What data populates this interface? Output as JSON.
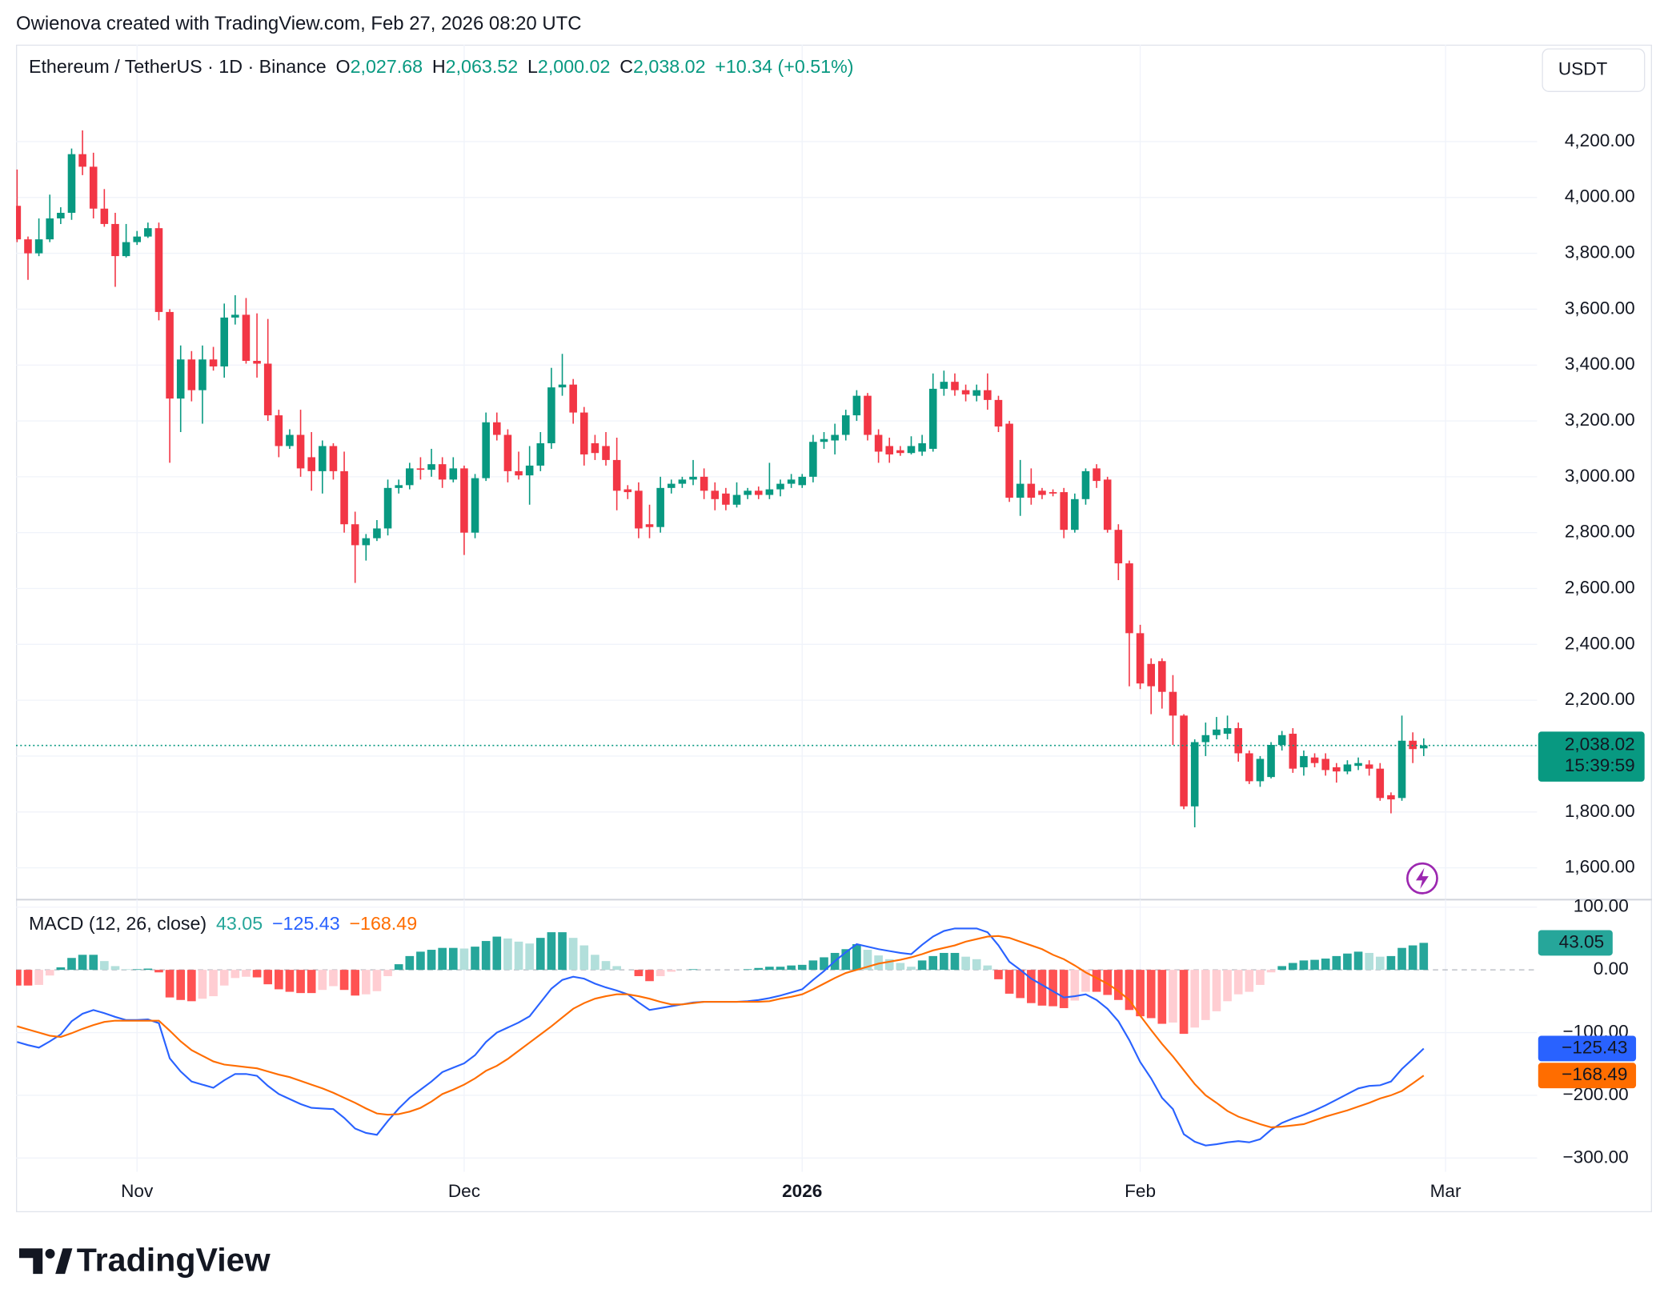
{
  "header": {
    "credit": "Owienova created with TradingView.com, Feb 27, 2026 08:20 UTC"
  },
  "chart_data": [
    {
      "type": "candlestick",
      "title": "Ethereum / TetherUS · 1D · Binance",
      "currency": "USDT",
      "legend": [
        {
          "label": "O",
          "value": "2,027.68"
        },
        {
          "label": "H",
          "value": "2,063.52"
        },
        {
          "label": "L",
          "value": "2,000.02"
        },
        {
          "label": "C",
          "value": "2,038.02"
        }
      ],
      "change": "+10.34 (+0.51%)",
      "open": [
        3970,
        3850,
        3800,
        3850,
        3925,
        3945,
        4155,
        4110,
        3960,
        3905,
        3790,
        3840,
        3860,
        3890,
        3590,
        3280,
        3420,
        3310,
        3420,
        3395,
        3570,
        3580,
        3415,
        3405,
        3220,
        3110,
        3150,
        3070,
        3020,
        3110,
        3020,
        2830,
        2755,
        2780,
        2815,
        2960,
        2970,
        3030,
        3025,
        3045,
        2990,
        3030,
        2800,
        2995,
        3195,
        3150,
        3020,
        3005,
        3040,
        3120,
        3320,
        3330,
        3230,
        3120,
        3110,
        3060,
        2955,
        2950,
        2830,
        2820,
        2960,
        2975,
        2990,
        3000,
        2950,
        2940,
        2900,
        2935,
        2950,
        2935,
        2955,
        2975,
        2970,
        3000,
        3125,
        3130,
        3150,
        3220,
        3290,
        3150,
        3110,
        3095,
        3085,
        3090,
        3100,
        3315,
        3340,
        3310,
        3290,
        3310,
        3275,
        3190,
        2925,
        2975,
        2950,
        2945,
        2945,
        2810,
        2920,
        3030,
        2990,
        2810,
        2690,
        2440,
        2330,
        2340,
        2230,
        2145,
        1820,
        2050,
        2075,
        2080,
        2100,
        2010,
        1910,
        1925,
        2040,
        2080,
        1960,
        1995,
        1990,
        1960,
        1945,
        1965,
        1970,
        1955,
        1860,
        1850,
        2055,
        2027.68
      ],
      "high": [
        4100,
        3860,
        3925,
        4010,
        3965,
        4175,
        4240,
        4160,
        4030,
        3945,
        3905,
        3880,
        3910,
        3910,
        3600,
        3470,
        3450,
        3470,
        3465,
        3620,
        3650,
        3640,
        3585,
        3565,
        3240,
        3170,
        3240,
        3160,
        3130,
        3120,
        3090,
        2875,
        2795,
        2845,
        2990,
        2990,
        3050,
        3070,
        3100,
        3070,
        3070,
        3040,
        3010,
        3230,
        3230,
        3170,
        3090,
        3110,
        3160,
        3390,
        3440,
        3350,
        3250,
        3150,
        3160,
        3140,
        2970,
        2980,
        2900,
        3000,
        2990,
        3000,
        3060,
        3030,
        2980,
        2960,
        2980,
        2960,
        2965,
        3050,
        2990,
        3010,
        3010,
        3150,
        3160,
        3190,
        3240,
        3310,
        3300,
        3170,
        3140,
        3110,
        3145,
        3150,
        3370,
        3380,
        3370,
        3330,
        3330,
        3370,
        3290,
        3200,
        3060,
        3030,
        2960,
        2955,
        2960,
        2940,
        3030,
        3045,
        3000,
        2830,
        2700,
        2470,
        2350,
        2350,
        2290,
        2150,
        2060,
        2120,
        2140,
        2145,
        2120,
        2020,
        2000,
        2050,
        2090,
        2100,
        2020,
        2010,
        2010,
        1975,
        1985,
        1995,
        1985,
        1975,
        1870,
        2145,
        2085,
        2063.52
      ],
      "low": [
        3840,
        3705,
        3790,
        3840,
        3905,
        3920,
        4080,
        3925,
        3895,
        3680,
        3785,
        3830,
        3855,
        3560,
        3050,
        3160,
        3270,
        3190,
        3380,
        3355,
        3545,
        3405,
        3355,
        3200,
        3070,
        3100,
        3000,
        2950,
        2940,
        2990,
        2800,
        2620,
        2700,
        2770,
        2790,
        2940,
        2955,
        2990,
        3000,
        2960,
        2980,
        2720,
        2780,
        2985,
        3130,
        2980,
        2990,
        2900,
        3020,
        3100,
        3290,
        3190,
        3040,
        3060,
        3040,
        2880,
        2920,
        2780,
        2780,
        2800,
        2940,
        2960,
        2970,
        2920,
        2880,
        2880,
        2890,
        2920,
        2920,
        2920,
        2930,
        2960,
        2960,
        2980,
        3100,
        3080,
        3130,
        3200,
        3130,
        3050,
        3050,
        3075,
        3080,
        3075,
        3090,
        3290,
        3290,
        3270,
        3270,
        3240,
        3160,
        2910,
        2860,
        2900,
        2920,
        2930,
        2780,
        2800,
        2900,
        2960,
        2800,
        2630,
        2250,
        2240,
        2150,
        2170,
        2040,
        1810,
        1745,
        2000,
        2060,
        2060,
        1980,
        1900,
        1890,
        1920,
        2020,
        1940,
        1930,
        1960,
        1930,
        1905,
        1935,
        1950,
        1930,
        1840,
        1795,
        1840,
        1975,
        2000.02
      ],
      "close": [
        3850,
        3800,
        3850,
        3925,
        3945,
        4155,
        4110,
        3960,
        3905,
        3790,
        3840,
        3860,
        3890,
        3590,
        3280,
        3420,
        3310,
        3420,
        3395,
        3570,
        3580,
        3415,
        3405,
        3220,
        3110,
        3150,
        3030,
        3020,
        3110,
        3020,
        2830,
        2755,
        2780,
        2815,
        2960,
        2970,
        3030,
        3025,
        3045,
        2990,
        3030,
        2800,
        2995,
        3195,
        3150,
        3020,
        3005,
        3040,
        3120,
        3320,
        3330,
        3230,
        3080,
        3085,
        3060,
        2950,
        2945,
        2815,
        2820,
        2960,
        2975,
        2990,
        3000,
        2950,
        2920,
        2900,
        2935,
        2950,
        2935,
        2955,
        2975,
        2990,
        3000,
        3125,
        3135,
        3150,
        3220,
        3290,
        3150,
        3090,
        3080,
        3085,
        3110,
        3120,
        3315,
        3340,
        3310,
        3295,
        3310,
        3275,
        3180,
        2925,
        2975,
        2925,
        2935,
        2940,
        2810,
        2920,
        3020,
        2985,
        2810,
        2690,
        2440,
        2260,
        2250,
        2230,
        2145,
        1820,
        2050,
        2075,
        2095,
        2100,
        2010,
        1910,
        1990,
        2040,
        2075,
        1955,
        2000,
        1975,
        1950,
        1945,
        1970,
        1975,
        1955,
        1850,
        1845,
        2055,
        2025,
        2038.02
      ],
      "last_price_label": "2,038.02",
      "countdown": "15:39:59",
      "up_color": "#089981",
      "down_color": "#f23645",
      "xlim": [
        -0.1,
        139.4
      ],
      "ylim": [
        1490,
        4547
      ],
      "yticks": [
        {
          "value": 1600,
          "label": "1,600.00"
        },
        {
          "value": 1800,
          "label": "1,800.00"
        },
        {
          "value": 2000,
          "label": "2,000.00"
        },
        {
          "value": 2200,
          "label": "2,200.00"
        },
        {
          "value": 2400,
          "label": "2,400.00"
        },
        {
          "value": 2600,
          "label": "2,600.00"
        },
        {
          "value": 2800,
          "label": "2,800.00"
        },
        {
          "value": 3000,
          "label": "3,000.00"
        },
        {
          "value": 3200,
          "label": "3,200.00"
        },
        {
          "value": 3400,
          "label": "3,400.00"
        },
        {
          "value": 3600,
          "label": "3,600.00"
        },
        {
          "value": 3800,
          "label": "3,800.00"
        },
        {
          "value": 4000,
          "label": "4,000.00"
        },
        {
          "value": 4200,
          "label": "4,200.00"
        }
      ],
      "grid": true
    },
    {
      "type": "macd",
      "title": "MACD (12, 26, close)",
      "histogram": {
        "values": [
          -25,
          -25,
          -24,
          -9,
          4,
          19,
          24,
          24,
          14,
          6,
          1,
          1,
          2,
          -4,
          -44,
          -48,
          -50,
          -46,
          -42,
          -25,
          -13,
          -11,
          -12,
          -23,
          -31,
          -35,
          -37,
          -37,
          -32,
          -26,
          -32,
          -41,
          -39,
          -34,
          -10,
          9,
          22,
          29,
          32,
          35,
          35,
          34,
          37,
          46,
          53,
          50,
          45,
          42,
          51,
          60,
          60,
          51,
          39,
          24,
          14,
          6,
          0,
          -10,
          -18,
          -10,
          -3,
          0,
          1,
          0,
          0,
          0,
          0,
          1,
          3,
          5,
          5,
          7,
          8,
          15,
          20,
          27,
          33,
          41,
          32,
          23,
          17,
          11,
          5,
          15,
          22,
          27,
          27,
          21,
          17,
          7,
          -15,
          -38,
          -45,
          -53,
          -57,
          -58,
          -61,
          -49,
          -35,
          -35,
          -40,
          -48,
          -64,
          -74,
          -77,
          -86,
          -84,
          -102,
          -92,
          -80,
          -66,
          -50,
          -39,
          -35,
          -24,
          -4,
          6,
          11,
          15,
          16,
          18,
          22,
          26,
          29,
          27,
          21,
          22,
          35,
          39,
          43.05
        ],
        "value_label": "43.05",
        "color": "#26a69a",
        "colors": {
          "up_strong": "#26a69a",
          "up_weak": "#b2dfdb",
          "down_strong": "#ff5252",
          "down_weak": "#ffcdd2"
        }
      },
      "macd": {
        "values": [
          -115,
          -120,
          -124,
          -114,
          -103,
          -82,
          -70,
          -64,
          -69,
          -75,
          -80,
          -80,
          -79,
          -85,
          -141,
          -162,
          -178,
          -183,
          -188,
          -176,
          -166,
          -166,
          -169,
          -185,
          -198,
          -206,
          -214,
          -220,
          -221,
          -222,
          -236,
          -253,
          -260,
          -263,
          -241,
          -221,
          -204,
          -191,
          -178,
          -163,
          -156,
          -149,
          -136,
          -115,
          -100,
          -92,
          -84,
          -74,
          -52,
          -30,
          -16,
          -11,
          -14,
          -22,
          -28,
          -33,
          -39,
          -52,
          -64,
          -61,
          -58,
          -55,
          -52,
          -51,
          -51,
          -51,
          -51,
          -50,
          -48,
          -45,
          -41,
          -36,
          -31,
          -16,
          -2,
          14,
          28,
          41,
          37,
          33,
          30,
          27,
          25,
          40,
          53,
          62,
          66,
          66,
          66,
          60,
          39,
          13,
          0,
          -14,
          -24,
          -34,
          -44,
          -42,
          -39,
          -48,
          -62,
          -82,
          -112,
          -147,
          -173,
          -204,
          -222,
          -262,
          -274,
          -280,
          -278,
          -275,
          -273,
          -275,
          -270,
          -255,
          -244,
          -237,
          -231,
          -224,
          -216,
          -207,
          -198,
          -189,
          -185,
          -184,
          -178,
          -158,
          -142,
          -125.43
        ],
        "value_label": "−125.43",
        "color": "#2962ff"
      },
      "signal": {
        "values": [
          -90,
          -95,
          -100,
          -105,
          -107,
          -101,
          -94,
          -88,
          -83,
          -81,
          -81,
          -81,
          -81,
          -81,
          -97,
          -114,
          -128,
          -137,
          -146,
          -151,
          -153,
          -155,
          -157,
          -162,
          -167,
          -171,
          -177,
          -183,
          -189,
          -196,
          -204,
          -212,
          -221,
          -229,
          -231,
          -230,
          -226,
          -220,
          -210,
          -198,
          -191,
          -183,
          -173,
          -161,
          -153,
          -142,
          -129,
          -116,
          -103,
          -90,
          -76,
          -62,
          -53,
          -46,
          -42,
          -39,
          -39,
          -42,
          -46,
          -51,
          -55,
          -55,
          -53,
          -51,
          -51,
          -51,
          -51,
          -51,
          -51,
          -50,
          -46,
          -43,
          -39,
          -31,
          -22,
          -13,
          -5,
          0,
          5,
          10,
          13,
          16,
          20,
          25,
          31,
          35,
          39,
          45,
          49,
          53,
          54,
          51,
          45,
          39,
          33,
          24,
          17,
          7,
          -4,
          -13,
          -22,
          -34,
          -48,
          -73,
          -96,
          -118,
          -138,
          -160,
          -182,
          -200,
          -212,
          -225,
          -234,
          -240,
          -246,
          -251,
          -250,
          -248,
          -246,
          -240,
          -234,
          -229,
          -224,
          -218,
          -212,
          -205,
          -200,
          -193,
          -181,
          -168.49
        ],
        "value_label": "−168.49",
        "color": "#ff6d00"
      },
      "xlim": [
        -0.1,
        139.4
      ],
      "xticks": [
        {
          "value": 11,
          "label": "Nov"
        },
        {
          "value": 41,
          "label": "Dec"
        },
        {
          "value": 72,
          "label": "2026"
        },
        {
          "value": 103,
          "label": "Feb"
        },
        {
          "value": 131,
          "label": "Mar"
        }
      ],
      "bold_xtick": 2,
      "ylim": [
        -322,
        112
      ],
      "yticks": [
        {
          "value": 100,
          "label": "100.00"
        },
        {
          "value": 0,
          "label": "0.00"
        },
        {
          "value": -100,
          "label": "−100.00"
        },
        {
          "value": -200,
          "label": "−200.00"
        },
        {
          "value": -300,
          "label": "−300.00"
        }
      ]
    }
  ],
  "footer": {
    "logo": "TradingView"
  }
}
